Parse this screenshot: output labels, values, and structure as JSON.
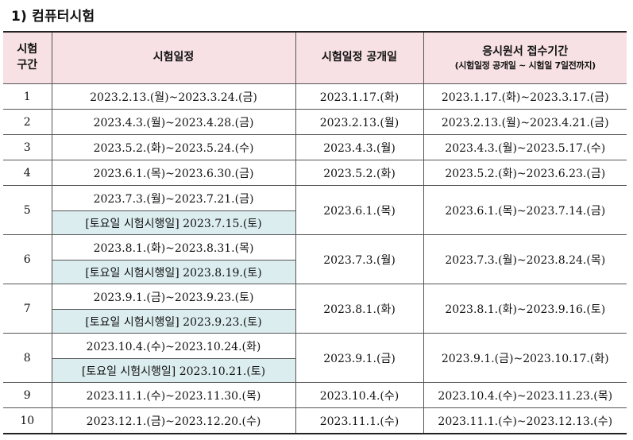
{
  "section": {
    "title": "1) 컴퓨터시험"
  },
  "table": {
    "headers": {
      "round": "시험\n구간",
      "exam_date": "시험일정",
      "open_date": "시험일정 공개일",
      "registration": "응시원서 접수기간",
      "registration_note": "(시험일정 공개일 ~ 시험일 7일전까지)"
    },
    "rows": [
      {
        "no": "1",
        "exam": "2023.2.13.(월)~2023.3.24.(금)",
        "saturday": null,
        "open": "2023.1.17.(화)",
        "reg": "2023.1.17.(화)~2023.3.17.(금)"
      },
      {
        "no": "2",
        "exam": "2023.4.3.(월)~2023.4.28.(금)",
        "saturday": null,
        "open": "2023.2.13.(월)",
        "reg": "2023.2.13.(월)~2023.4.21.(금)"
      },
      {
        "no": "3",
        "exam": "2023.5.2.(화)~2023.5.24.(수)",
        "saturday": null,
        "open": "2023.4.3.(월)",
        "reg": "2023.4.3.(월)~2023.5.17.(수)"
      },
      {
        "no": "4",
        "exam": "2023.6.1.(목)~2023.6.30.(금)",
        "saturday": null,
        "open": "2023.5.2.(화)",
        "reg": "2023.5.2.(화)~2023.6.23.(금)"
      },
      {
        "no": "5",
        "exam": "2023.7.3.(월)~2023.7.21.(금)",
        "saturday": "[토요일 시험시행일] 2023.7.15.(토)",
        "open": "2023.6.1.(목)",
        "reg": "2023.6.1.(목)~2023.7.14.(금)"
      },
      {
        "no": "6",
        "exam": "2023.8.1.(화)~2023.8.31.(목)",
        "saturday": "[토요일 시험시행일] 2023.8.19.(토)",
        "open": "2023.7.3.(월)",
        "reg": "2023.7.3.(월)~2023.8.24.(목)"
      },
      {
        "no": "7",
        "exam": "2023.9.1.(금)~2023.9.23.(토)",
        "saturday": "[토요일 시험시행일] 2023.9.23.(토)",
        "open": "2023.8.1.(화)",
        "reg": "2023.8.1.(화)~2023.9.16.(토)"
      },
      {
        "no": "8",
        "exam": "2023.10.4.(수)~2023.10.24.(화)",
        "saturday": "[토요일 시험시행일] 2023.10.21.(토)",
        "open": "2023.9.1.(금)",
        "reg": "2023.9.1.(금)~2023.10.17.(화)"
      },
      {
        "no": "9",
        "exam": "2023.11.1.(수)~2023.11.30.(목)",
        "saturday": null,
        "open": "2023.10.4.(수)",
        "reg": "2023.10.4.(수)~2023.11.23.(목)"
      },
      {
        "no": "10",
        "exam": "2023.12.1.(금)~2023.12.20.(수)",
        "saturday": null,
        "open": "2023.11.1.(수)",
        "reg": "2023.11.1.(수)~2023.12.13.(수)"
      }
    ]
  },
  "colors": {
    "header_bg": "#f7e1e4",
    "saturday_bg": "#dcedf0",
    "border": "#555555"
  }
}
